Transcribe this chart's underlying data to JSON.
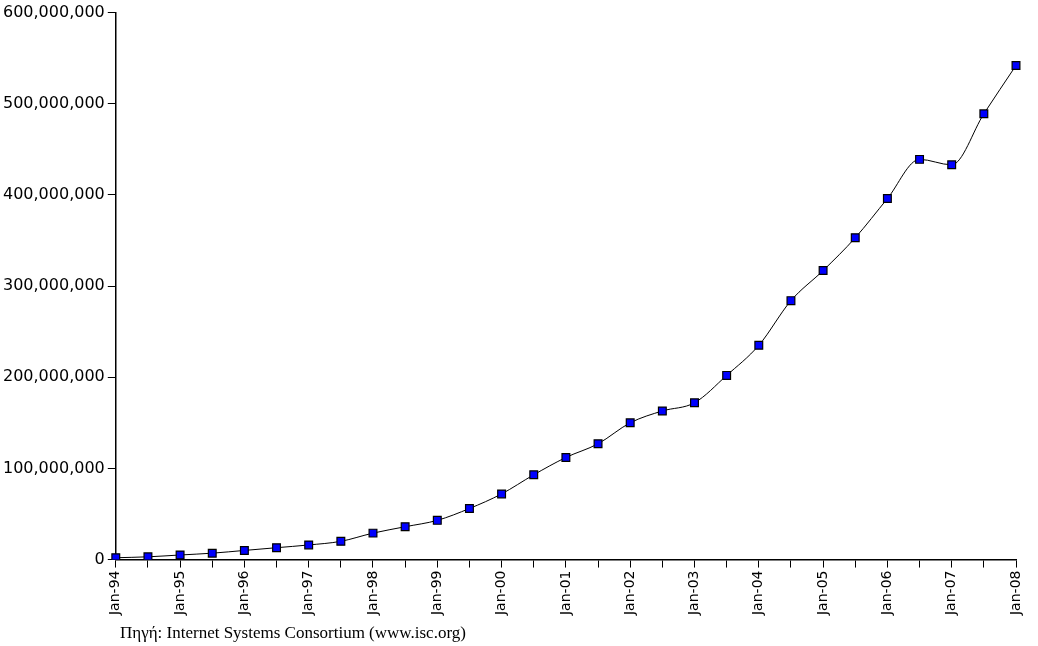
{
  "chart_data": {
    "type": "line",
    "categories": [
      "Jan-94",
      null,
      "Jan-95",
      null,
      "Jan-96",
      null,
      "Jan-97",
      null,
      "Jan-98",
      null,
      "Jan-99",
      null,
      "Jan-00",
      null,
      "Jan-01",
      null,
      "Jan-02",
      null,
      "Jan-03",
      null,
      "Jan-04",
      null,
      "Jan-05",
      null,
      "Jan-06",
      null,
      "Jan-07",
      null,
      "Jan-08"
    ],
    "series": [
      {
        "color": "#0000ff",
        "values": [
          2000000,
          3000000,
          5000000,
          7000000,
          10000000,
          13000000,
          16000000,
          20000000,
          29000000,
          36000000,
          43000000,
          56000000,
          72000000,
          93000000,
          112000000,
          127000000,
          150000000,
          163000000,
          172000000,
          202000000,
          235000000,
          284000000,
          317000000,
          353000000,
          396000000,
          439000000,
          433000000,
          489000000,
          542000000
        ]
      }
    ],
    "ylim": [
      0,
      600000000
    ],
    "yticks": [
      {
        "value": 0,
        "label": "0"
      },
      {
        "value": 100000000,
        "label": "100,000,000"
      },
      {
        "value": 200000000,
        "label": "200,000,000"
      },
      {
        "value": 300000000,
        "label": "300,000,000"
      },
      {
        "value": 400000000,
        "label": "400,000,000"
      },
      {
        "value": 500000000,
        "label": "500,000,000"
      },
      {
        "value": 600000000,
        "label": "600,000,000"
      }
    ],
    "grid": false,
    "legend": false,
    "marker": "square",
    "line_style": "solid",
    "annotations": [
      "Πηγή: Internet Systems Consortium (www.isc.org)"
    ]
  }
}
